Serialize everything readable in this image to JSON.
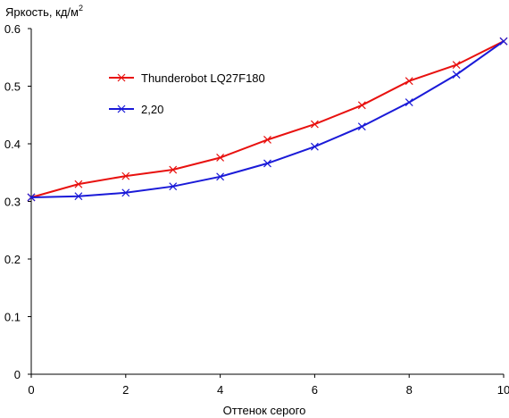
{
  "chart_data": {
    "type": "line",
    "title": "",
    "xlabel": "Оттенок серого",
    "ylabel": "Яркость, кд/м",
    "ylabel_superscript": "2",
    "xlim": [
      0,
      10
    ],
    "ylim": [
      0,
      0.6
    ],
    "xticks": [
      "0",
      "2",
      "4",
      "6",
      "8",
      "10"
    ],
    "yticks": [
      "0",
      "0.1",
      "0.2",
      "0.3",
      "0.4",
      "0.5",
      "0.6"
    ],
    "grid": false,
    "legend_position": "top-left",
    "x": [
      0,
      1,
      2,
      3,
      4,
      5,
      6,
      7,
      8,
      9,
      10
    ],
    "series": [
      {
        "name": "Thunderobot LQ27F180",
        "color": "#e8110f",
        "marker": "x",
        "values": [
          0.307,
          0.33,
          0.344,
          0.355,
          0.376,
          0.407,
          0.434,
          0.467,
          0.509,
          0.537,
          0.578
        ]
      },
      {
        "name": "2,20",
        "color": "#1a1ad8",
        "marker": "x",
        "values": [
          0.307,
          0.309,
          0.315,
          0.326,
          0.343,
          0.366,
          0.395,
          0.43,
          0.472,
          0.52,
          0.578
        ]
      }
    ]
  }
}
